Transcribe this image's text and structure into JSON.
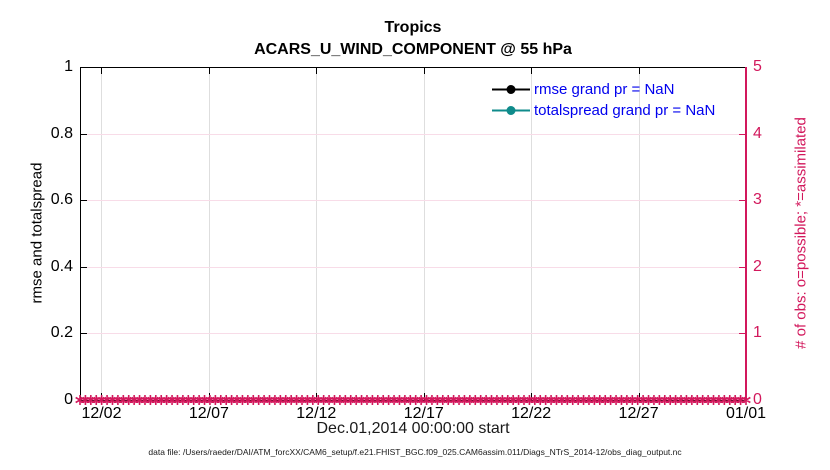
{
  "figure": {
    "title": "Tropics",
    "subtitle": "ACARS_U_WIND_COMPONENT @ 55 hPa",
    "xlabel": "Dec.01,2014 00:00:00 start",
    "ylabel_left": "rmse and totalspread",
    "ylabel_right": "# of obs: o=possible; *=assimilated",
    "footer": "data file: /Users/raeder/DAI/ATM_forcXX/CAM6_setup/f.e21.FHIST_BGC.f09_025.CAM6assim.011/Diags_NTrS_2014-12/obs_diag_output.nc"
  },
  "legend": [
    {
      "label": "rmse grand pr = NaN",
      "color": "#000000"
    },
    {
      "label": "totalspread grand pr = NaN",
      "color": "#0f8b8b"
    }
  ],
  "colors": {
    "left_axis": "#000000",
    "right_axis": "#d2185c",
    "marker": "#d2185c",
    "legend_text": "#0000ee",
    "grid_vertical": "#dedede",
    "grid_horizontal": "#f8dce8"
  },
  "chart_data": {
    "type": "line",
    "title": "Tropics",
    "subtitle": "ACARS_U_WIND_COMPONENT @ 55 hPa",
    "xlabel": "Dec.01,2014 00:00:00 start",
    "ylabel_left": "rmse and totalspread",
    "ylabel_right": "# of obs: o=possible; *=assimilated",
    "x_axis": {
      "start": "Dec.01,2014 00:00:00",
      "range_days": [
        0,
        31
      ],
      "tick_days": [
        1,
        6,
        11,
        16,
        21,
        26,
        31
      ],
      "tick_labels": [
        "12/02",
        "12/07",
        "12/12",
        "12/17",
        "12/22",
        "12/27",
        "01/01"
      ]
    },
    "y_left": {
      "range": [
        0,
        1
      ],
      "tick_values": [
        0,
        0.2,
        0.4,
        0.6,
        0.8,
        1
      ],
      "tick_labels": [
        "0",
        "0.2",
        "0.4",
        "0.6",
        "0.8",
        "1"
      ]
    },
    "y_right": {
      "range": [
        0,
        5
      ],
      "tick_values": [
        0,
        1,
        2,
        3,
        4,
        5
      ],
      "tick_labels": [
        "0",
        "1",
        "2",
        "3",
        "4",
        "5"
      ]
    },
    "series": [
      {
        "name": "rmse",
        "grand_pr": "NaN",
        "color": "#000000",
        "marker": "filled-circle",
        "values": "NaN (no curve plotted)"
      },
      {
        "name": "totalspread",
        "grand_pr": "NaN",
        "color": "#0f8b8b",
        "marker": "filled-circle",
        "values": "NaN (no curve plotted)"
      },
      {
        "name": "obs possible (o)",
        "color": "#d2185c",
        "marker": "o",
        "constant_value": 0,
        "n_points": 124
      },
      {
        "name": "obs assimilated (*)",
        "color": "#d2185c",
        "marker": "*",
        "constant_value": 0,
        "n_points": 124
      }
    ],
    "grid": true,
    "legend_position": "top-right-inside"
  }
}
